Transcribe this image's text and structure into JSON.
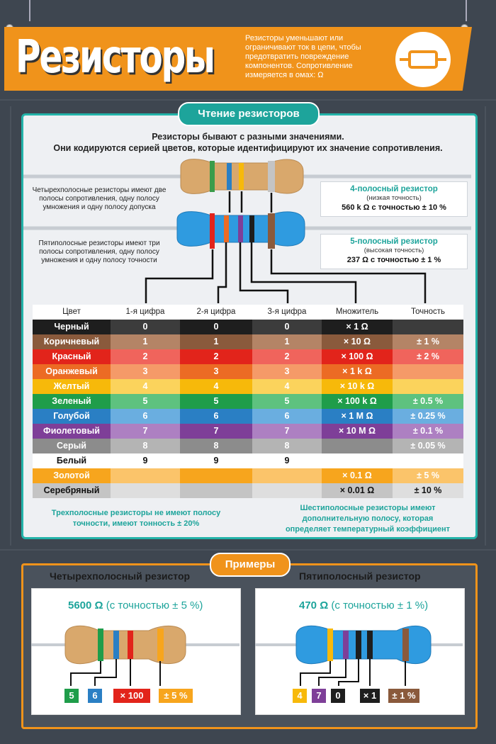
{
  "header": {
    "title": "Резисторы",
    "description": "Резисторы уменьшают или ограничивают ток в цепи, чтобы предотвратить повреждение компонентов. Сопротивление измеряется в омах: Ω"
  },
  "reading": {
    "section_title": "Чтение резисторов",
    "intro_line1": "Резисторы бывают с разными значениями.",
    "intro_line2": "Они кодируются серией цветов, которые идентифицируют их значение сопротивления.",
    "four_band_note": "Четырехполосные резисторы имеют две полосы сопротивления, одну полосу умножения и одну полосу допуска",
    "five_band_note": "Пятиполосные резисторы имеют три полосы сопротивления, одну полосу умножения и одну полосу точности",
    "box4": {
      "title": "4-полосный резистор",
      "sub": "(низкая точность)",
      "value": "560 k Ω с точностью ± 10 %"
    },
    "box5": {
      "title": "5-полосный резистор",
      "sub": "(высокая точность)",
      "value": "237 Ω с точностью ± 1 %"
    }
  },
  "table": {
    "headers": [
      "Цвет",
      "1-я цифра",
      "2-я цифра",
      "3-я цифра",
      "Множитель",
      "Точность"
    ],
    "rows": [
      {
        "name": "Черный",
        "d1": "0",
        "d2": "0",
        "d3": "0",
        "mult": "× 1 Ω",
        "tol": "",
        "c1": "#1e1e1e",
        "c2": "#3c3c3c",
        "text": "#ffffff"
      },
      {
        "name": "Коричневый",
        "d1": "1",
        "d2": "1",
        "d3": "1",
        "mult": "× 10 Ω",
        "tol": "± 1 %",
        "c1": "#8a5a3c",
        "c2": "#b48466",
        "text": "#ffffff"
      },
      {
        "name": "Красный",
        "d1": "2",
        "d2": "2",
        "d3": "2",
        "mult": "× 100 Ω",
        "tol": "± 2 %",
        "c1": "#e2241b",
        "c2": "#f0645c",
        "text": "#ffffff"
      },
      {
        "name": "Оранжевый",
        "d1": "3",
        "d2": "3",
        "d3": "3",
        "mult": "× 1 k Ω",
        "tol": "",
        "c1": "#ec6b24",
        "c2": "#f59a68",
        "text": "#ffffff"
      },
      {
        "name": "Желтый",
        "d1": "4",
        "d2": "4",
        "d3": "4",
        "mult": "× 10 k Ω",
        "tol": "",
        "c1": "#f7b90a",
        "c2": "#fbd35c",
        "text": "#ffffff"
      },
      {
        "name": "Зеленый",
        "d1": "5",
        "d2": "5",
        "d3": "5",
        "mult": "× 100 k Ω",
        "tol": "± 0.5 %",
        "c1": "#1f9d4a",
        "c2": "#5ec27f",
        "text": "#ffffff"
      },
      {
        "name": "Голубой",
        "d1": "6",
        "d2": "6",
        "d3": "6",
        "mult": "× 1 M Ω",
        "tol": "± 0.25 %",
        "c1": "#2a7fc4",
        "c2": "#6aaee0",
        "text": "#ffffff"
      },
      {
        "name": "Фиолетовый",
        "d1": "7",
        "d2": "7",
        "d3": "7",
        "mult": "× 10 M Ω",
        "tol": "± 0.1 %",
        "c1": "#7e3f98",
        "c2": "#ad80c2",
        "text": "#ffffff"
      },
      {
        "name": "Серый",
        "d1": "8",
        "d2": "8",
        "d3": "8",
        "mult": "",
        "tol": "± 0.05 %",
        "c1": "#8c8c8c",
        "c2": "#b4b4b4",
        "text": "#ffffff"
      },
      {
        "name": "Белый",
        "d1": "9",
        "d2": "9",
        "d3": "9",
        "mult": "",
        "tol": "",
        "c1": "#ffffff",
        "c2": "#ffffff",
        "text": "#111111"
      },
      {
        "name": "Золотой",
        "d1": "",
        "d2": "",
        "d3": "",
        "mult": "× 0.1 Ω",
        "tol": "± 5 %",
        "c1": "#f7a51d",
        "c2": "#fbc46a",
        "text": "#ffffff"
      },
      {
        "name": "Серебряный",
        "d1": "",
        "d2": "",
        "d3": "",
        "mult": "× 0.01 Ω",
        "tol": "± 10 %",
        "c1": "#c4c4c4",
        "c2": "#dedede",
        "text": "#111111"
      }
    ]
  },
  "notes": {
    "three_band": "Трехполосные резисторы не имеют полосу точности, имеют тонность ± 20%",
    "six_band": "Шестиполосные резисторы имеют дополнительную полосу, которая определяет температурный коэффициент"
  },
  "examples": {
    "section_title": "Примеры",
    "four": {
      "title": "Четырехполосный резистор",
      "value": "5600 Ω",
      "tolerance": "(с точностью ± 5 %)",
      "chips": [
        {
          "label": "5",
          "color": "#1f9d4a"
        },
        {
          "label": "6",
          "color": "#2a7fc4"
        },
        {
          "label": "× 100",
          "color": "#e2241b"
        },
        {
          "label": "± 5 %",
          "color": "#f7a51d"
        }
      ]
    },
    "five": {
      "title": "Пятиполосный резистор",
      "value": "470 Ω",
      "tolerance": "(с точностью ± 1 %)",
      "chips": [
        {
          "label": "4",
          "color": "#f7b90a"
        },
        {
          "label": "7",
          "color": "#7e3f98"
        },
        {
          "label": "0",
          "color": "#1e1e1e"
        },
        {
          "label": "× 1",
          "color": "#1e1e1e"
        },
        {
          "label": "± 1 %",
          "color": "#8a5a3c"
        }
      ]
    }
  }
}
